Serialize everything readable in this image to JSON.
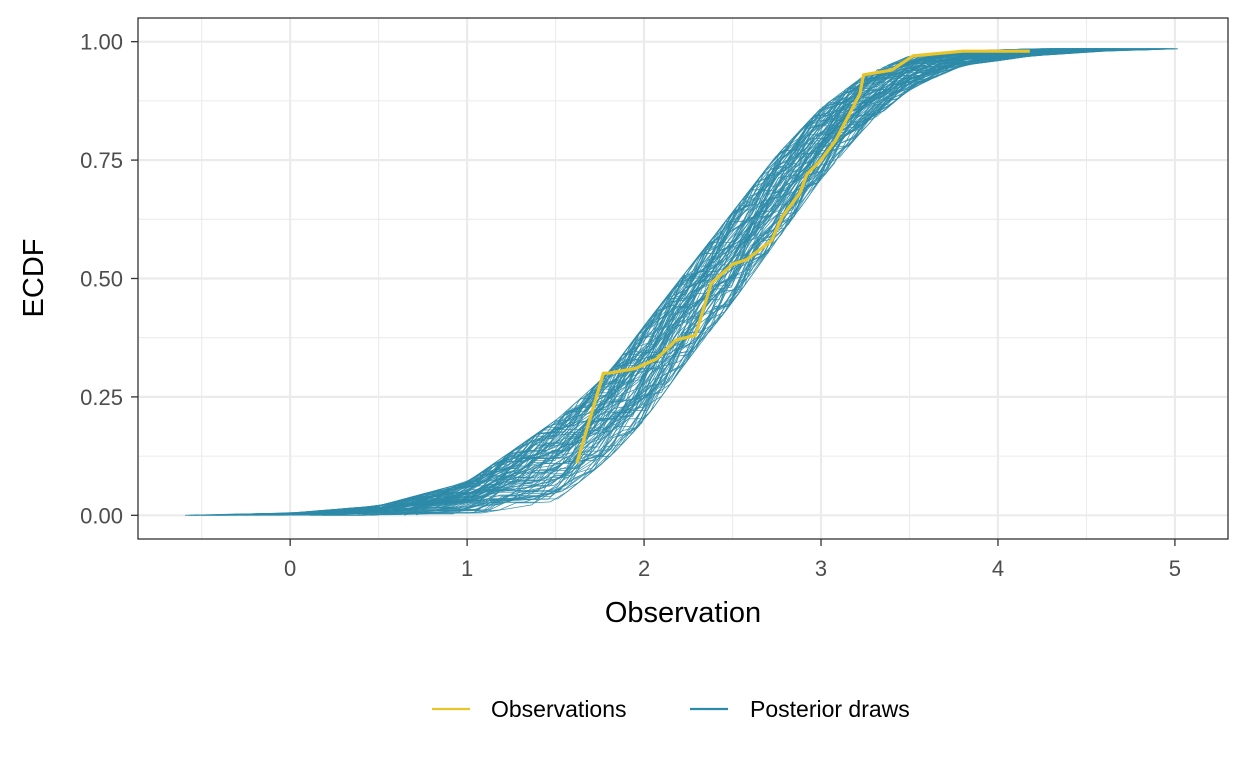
{
  "chart_data": {
    "type": "line",
    "title": "",
    "xlabel": "Observation",
    "ylabel": "ECDF",
    "xlim": [
      -0.86,
      5.3
    ],
    "ylim": [
      -0.05,
      1.05
    ],
    "x_ticks": [
      0,
      1,
      2,
      3,
      4,
      5
    ],
    "x_tick_labels": [
      "0",
      "1",
      "2",
      "3",
      "4",
      "5"
    ],
    "y_ticks": [
      0,
      0.25,
      0.5,
      0.75,
      1
    ],
    "y_tick_labels": [
      "0.00",
      "0.25",
      "0.50",
      "0.75",
      "1.00"
    ],
    "grid": true,
    "legend_position": "bottom",
    "series": [
      {
        "name": "Observations",
        "color": "#e8c52a",
        "x": [
          1.62,
          1.77,
          1.8,
          1.95,
          2.07,
          2.18,
          2.29,
          2.38,
          2.5,
          2.58,
          2.65,
          2.72,
          2.78,
          2.88,
          2.92,
          3.0,
          3.08,
          3.15,
          3.22,
          3.24,
          3.4,
          3.52,
          3.8,
          4.18
        ],
        "y": [
          0.11,
          0.3,
          0.3,
          0.31,
          0.33,
          0.37,
          0.38,
          0.49,
          0.53,
          0.54,
          0.56,
          0.58,
          0.63,
          0.68,
          0.72,
          0.75,
          0.79,
          0.84,
          0.89,
          0.93,
          0.94,
          0.97,
          0.98,
          0.98
        ]
      },
      {
        "name": "Posterior draws",
        "color": "#2e8ba8",
        "draw_count": 100,
        "band_x": [
          -0.6,
          0.0,
          0.5,
          1.0,
          1.5,
          1.8,
          2.0,
          2.25,
          2.5,
          2.75,
          3.0,
          3.25,
          3.5,
          3.8,
          4.2,
          4.6,
          5.02
        ],
        "band_lower": [
          0.0,
          0.0,
          0.0,
          0.0,
          0.03,
          0.12,
          0.2,
          0.33,
          0.45,
          0.58,
          0.71,
          0.82,
          0.9,
          0.95,
          0.97,
          0.98,
          0.985
        ],
        "band_upper": [
          0.0,
          0.005,
          0.02,
          0.07,
          0.2,
          0.3,
          0.4,
          0.52,
          0.64,
          0.76,
          0.86,
          0.93,
          0.97,
          0.98,
          0.985,
          0.985,
          0.985
        ]
      }
    ]
  }
}
